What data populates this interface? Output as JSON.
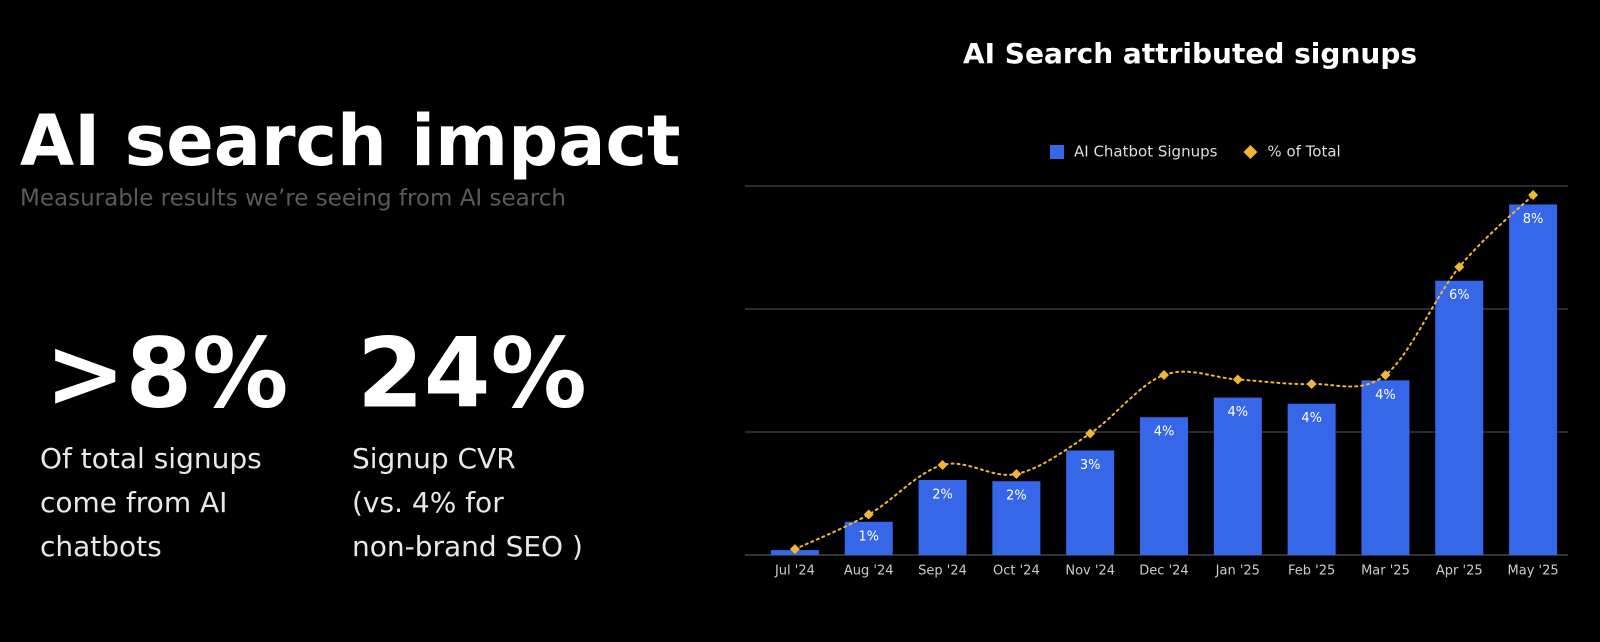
{
  "title": "AI search impact",
  "subtitle": "Measurable results we’re seeing from AI search",
  "stats": [
    {
      "value": ">8%",
      "caption": [
        "Of total signups",
        "come from AI",
        "chatbots"
      ]
    },
    {
      "value": "24%",
      "caption": [
        "Signup CVR",
        "(vs. 4% for",
        "non-brand SEO )"
      ]
    }
  ],
  "chart_data": {
    "type": "bar",
    "title": "AI Search attributed signups",
    "categories": [
      "Jul '24",
      "Aug '24",
      "Sep '24",
      "Oct '24",
      "Nov '24",
      "Dec '24",
      "Jan '25",
      "Feb '25",
      "Mar '25",
      "Apr '25",
      "May '25"
    ],
    "series": [
      {
        "name": "AI Chatbot Signups",
        "color": "#3567e8",
        "values": [
          0.04,
          0.27,
          0.61,
          0.6,
          0.85,
          1.12,
          1.28,
          1.23,
          1.42,
          2.23,
          2.85
        ]
      },
      {
        "name": "% of Total",
        "type": "line",
        "axis": "y2",
        "color": "#f2b632",
        "values": [
          0.13,
          0.9,
          2.0,
          1.8,
          2.7,
          4.0,
          3.9,
          3.8,
          4.0,
          6.4,
          8.0
        ],
        "value_labels": [
          null,
          "1%",
          "2%",
          "2%",
          "3%",
          "4%",
          "4%",
          "4%",
          "4%",
          "6%",
          "8%"
        ]
      }
    ],
    "ylim": [
      0,
      3
    ],
    "yticks": [
      0,
      1,
      2,
      3
    ],
    "y2lim": [
      0,
      8.2
    ],
    "grid": true,
    "legend": "top"
  }
}
